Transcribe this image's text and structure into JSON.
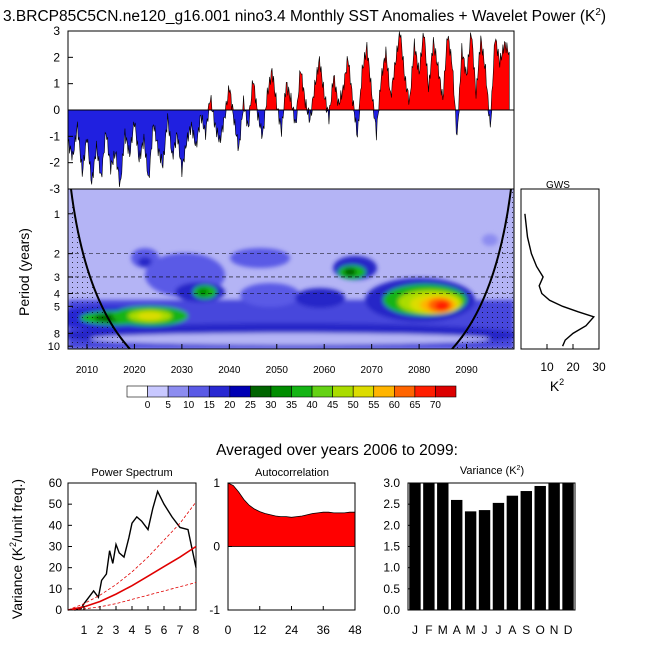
{
  "title": "3.BRCP85C5CN.ne120_g16.001 nino3.4 Monthly SST Anomalies + Wavelet Power (K",
  "title_sup": "2",
  "title_close": ")",
  "subtitle": "Averaged over years 2006 to 2099:",
  "chart_data": [
    {
      "id": "sst-anomalies",
      "type": "area",
      "xlim": [
        2006,
        2100
      ],
      "ylim": [
        -3,
        3
      ],
      "yticks": [
        "3",
        "2",
        "1",
        "0",
        "-1",
        "-2",
        "-3"
      ],
      "colors": {
        "positive": "#ff0000",
        "negative": "#2020e0"
      },
      "series_knots": [
        [
          2006,
          -1.2
        ],
        [
          2007,
          -1.8
        ],
        [
          2008,
          -0.6
        ],
        [
          2009,
          -2.4
        ],
        [
          2010,
          -1.0
        ],
        [
          2011,
          -2.8
        ],
        [
          2012,
          -1.4
        ],
        [
          2013,
          -2.6
        ],
        [
          2014,
          -0.8
        ],
        [
          2015,
          -2.2
        ],
        [
          2016,
          -1.6
        ],
        [
          2017,
          -2.9
        ],
        [
          2018,
          -0.9
        ],
        [
          2019,
          -1.7
        ],
        [
          2020,
          -0.4
        ],
        [
          2021,
          -1.9
        ],
        [
          2022,
          -1.1
        ],
        [
          2023,
          -2.7
        ],
        [
          2024,
          -0.5
        ],
        [
          2025,
          -1.5
        ],
        [
          2026,
          -2.1
        ],
        [
          2027,
          -0.3
        ],
        [
          2028,
          -1.8
        ],
        [
          2029,
          -0.9
        ],
        [
          2030,
          -2.3
        ],
        [
          2031,
          -1.2
        ],
        [
          2032,
          -0.6
        ],
        [
          2033,
          -1.4
        ],
        [
          2034,
          -0.2
        ],
        [
          2035,
          -0.9
        ],
        [
          2036,
          0.5
        ],
        [
          2037,
          -0.6
        ],
        [
          2038,
          -1.2
        ],
        [
          2039,
          -0.3
        ],
        [
          2040,
          0.9
        ],
        [
          2041,
          -0.4
        ],
        [
          2042,
          -1.5
        ],
        [
          2043,
          0.3
        ],
        [
          2044,
          -0.7
        ],
        [
          2045,
          1.2
        ],
        [
          2046,
          -0.2
        ],
        [
          2047,
          -1.0
        ],
        [
          2048,
          0.6
        ],
        [
          2049,
          1.5
        ],
        [
          2050,
          0.2
        ],
        [
          2051,
          -0.8
        ],
        [
          2052,
          1.0
        ],
        [
          2053,
          0.4
        ],
        [
          2054,
          -0.6
        ],
        [
          2055,
          1.6
        ],
        [
          2056,
          0.3
        ],
        [
          2057,
          -0.4
        ],
        [
          2058,
          0.9
        ],
        [
          2059,
          1.9
        ],
        [
          2060,
          0.6
        ],
        [
          2061,
          -0.3
        ],
        [
          2062,
          1.3
        ],
        [
          2063,
          0.2
        ],
        [
          2064,
          0.8
        ],
        [
          2065,
          2.0
        ],
        [
          2066,
          0.4
        ],
        [
          2067,
          -1.0
        ],
        [
          2068,
          1.5
        ],
        [
          2069,
          2.4
        ],
        [
          2070,
          0.7
        ],
        [
          2071,
          -0.9
        ],
        [
          2072,
          1.2
        ],
        [
          2073,
          2.2
        ],
        [
          2074,
          0.5
        ],
        [
          2075,
          1.8
        ],
        [
          2076,
          3.0
        ],
        [
          2077,
          1.2
        ],
        [
          2078,
          0.3
        ],
        [
          2079,
          2.5
        ],
        [
          2080,
          1.4
        ],
        [
          2081,
          3.0
        ],
        [
          2082,
          0.8
        ],
        [
          2083,
          2.6
        ],
        [
          2084,
          1.6
        ],
        [
          2085,
          0.4
        ],
        [
          2086,
          2.9
        ],
        [
          2087,
          1.7
        ],
        [
          2088,
          -1.1
        ],
        [
          2089,
          2.3
        ],
        [
          2090,
          1.3
        ],
        [
          2091,
          3.0
        ],
        [
          2092,
          0.6
        ],
        [
          2093,
          2.7
        ],
        [
          2094,
          1.5
        ],
        [
          2095,
          -0.7
        ],
        [
          2096,
          2.8
        ],
        [
          2097,
          1.8
        ],
        [
          2098,
          2.5
        ],
        [
          2099,
          2.2
        ]
      ]
    },
    {
      "id": "wavelet-power",
      "type": "heatmap",
      "ylabel": "Period (years)",
      "yticks": [
        "1",
        "2",
        "3",
        "4",
        "5",
        "8",
        "10"
      ],
      "xticks": [
        "2010",
        "2020",
        "2030",
        "2040",
        "2050",
        "2060",
        "2070",
        "2080",
        "2090"
      ],
      "significance_periods": [
        2,
        3,
        4
      ],
      "colorbar": {
        "labels": [
          "0",
          "5",
          "10",
          "15",
          "20",
          "25",
          "30",
          "35",
          "40",
          "45",
          "50",
          "55",
          "60",
          "65",
          "70"
        ],
        "colors": [
          "#ffffff",
          "#c8c8ff",
          "#8c8cf0",
          "#5a5ae6",
          "#2828d2",
          "#0000b4",
          "#006400",
          "#008c00",
          "#14b414",
          "#64d214",
          "#aadc00",
          "#dcdc00",
          "#ffb400",
          "#ff6400",
          "#ff1e00",
          "#dc0000"
        ]
      },
      "features": [
        {
          "year": 2011,
          "period": 5.2,
          "power": 35
        },
        {
          "year": 2020,
          "period": 5.0,
          "power": 45
        },
        {
          "year": 2034,
          "period": 3.8,
          "power": 40
        },
        {
          "year": 2044,
          "period": 4.8,
          "power": 20
        },
        {
          "year": 2066,
          "period": 3.0,
          "power": 40
        },
        {
          "year": 2082,
          "period": 4.3,
          "power": 75
        },
        {
          "year": 2084,
          "period": 5.0,
          "power": 70
        }
      ]
    },
    {
      "id": "gws",
      "type": "line",
      "title": "GWS",
      "xlabel": "K",
      "xlabel_sup": "2",
      "xticks": [
        "10",
        "20",
        "30"
      ],
      "xlim": [
        0,
        30
      ],
      "periods": [
        1,
        1.5,
        2,
        2.5,
        3,
        3.5,
        4,
        4.5,
        5,
        5.5,
        6,
        7,
        8,
        9,
        10
      ],
      "values": [
        1.5,
        2.5,
        4,
        6,
        8.5,
        7,
        8,
        11,
        16,
        22,
        28,
        25,
        20,
        17,
        16
      ]
    },
    {
      "id": "power-spectrum",
      "type": "line",
      "title": "Power Spectrum",
      "ylabel": "Variance (K",
      "ylabel_sup": "2",
      "ylabel_close": "/unit freq.)",
      "yticks": [
        "60",
        "50",
        "40",
        "30",
        "20",
        "10",
        "0"
      ],
      "xticks": [
        "1",
        "2",
        "3",
        "4",
        "5",
        "6",
        "7",
        "8"
      ],
      "xlim": [
        0,
        8
      ],
      "ylim": [
        0,
        60
      ],
      "series": [
        {
          "name": "spectrum",
          "x": [
            0.4,
            0.8,
            1.0,
            1.3,
            1.6,
            1.9,
            2.1,
            2.4,
            2.6,
            2.8,
            3.0,
            3.2,
            3.5,
            3.8,
            4.0,
            4.3,
            4.6,
            5.0,
            5.3,
            5.6,
            6.0,
            6.5,
            7.0,
            7.5,
            8.0
          ],
          "y": [
            0,
            0.5,
            3,
            6,
            9,
            6,
            14,
            17,
            28,
            22,
            31,
            27,
            25,
            34,
            41,
            44,
            42,
            38,
            48,
            56,
            50,
            44,
            39,
            38,
            20
          ]
        },
        {
          "name": "red-noise",
          "x": [
            0,
            1,
            2,
            3,
            4,
            5,
            6,
            7,
            8
          ],
          "y": [
            0,
            1.5,
            4,
            7.5,
            11.5,
            16,
            20.5,
            25,
            30
          ]
        },
        {
          "name": "upper-95",
          "x": [
            0,
            1,
            2,
            3,
            4,
            5,
            6,
            7,
            8
          ],
          "y": [
            0,
            3,
            7,
            12,
            18,
            25,
            33,
            41,
            51
          ]
        },
        {
          "name": "lower-5",
          "x": [
            0,
            1,
            2,
            3,
            4,
            5,
            6,
            7,
            8
          ],
          "y": [
            0,
            0.5,
            1.5,
            3,
            5,
            7,
            9,
            11,
            13
          ]
        }
      ]
    },
    {
      "id": "autocorrelation",
      "type": "area",
      "title": "Autocorrelation",
      "yticks": [
        "1",
        "0",
        "-1"
      ],
      "xticks": [
        "0",
        "12",
        "24",
        "36",
        "48"
      ],
      "xlim": [
        0,
        48
      ],
      "ylim": [
        -1,
        1
      ],
      "lags": [
        0,
        2,
        4,
        6,
        8,
        10,
        12,
        14,
        16,
        18,
        20,
        22,
        24,
        26,
        28,
        30,
        32,
        34,
        36,
        38,
        40,
        42,
        44,
        46,
        48
      ],
      "values": [
        1.0,
        0.96,
        0.86,
        0.74,
        0.65,
        0.59,
        0.55,
        0.52,
        0.5,
        0.48,
        0.47,
        0.47,
        0.46,
        0.47,
        0.48,
        0.5,
        0.52,
        0.53,
        0.54,
        0.54,
        0.53,
        0.53,
        0.53,
        0.54,
        0.54
      ]
    },
    {
      "id": "monthly-variance",
      "type": "bar",
      "title": "Variance (K",
      "title_sup": "2",
      "title_close": ")",
      "categories": [
        "J",
        "F",
        "M",
        "A",
        "M",
        "J",
        "J",
        "A",
        "S",
        "O",
        "N",
        "D"
      ],
      "values": [
        3.0,
        3.0,
        3.0,
        2.6,
        2.33,
        2.36,
        2.53,
        2.7,
        2.81,
        2.93,
        3.0,
        3.0
      ],
      "yticks": [
        "3.0",
        "2.5",
        "2.0",
        "1.5",
        "1.0",
        "0.5",
        "0.0"
      ],
      "ylim": [
        0,
        3
      ]
    }
  ]
}
